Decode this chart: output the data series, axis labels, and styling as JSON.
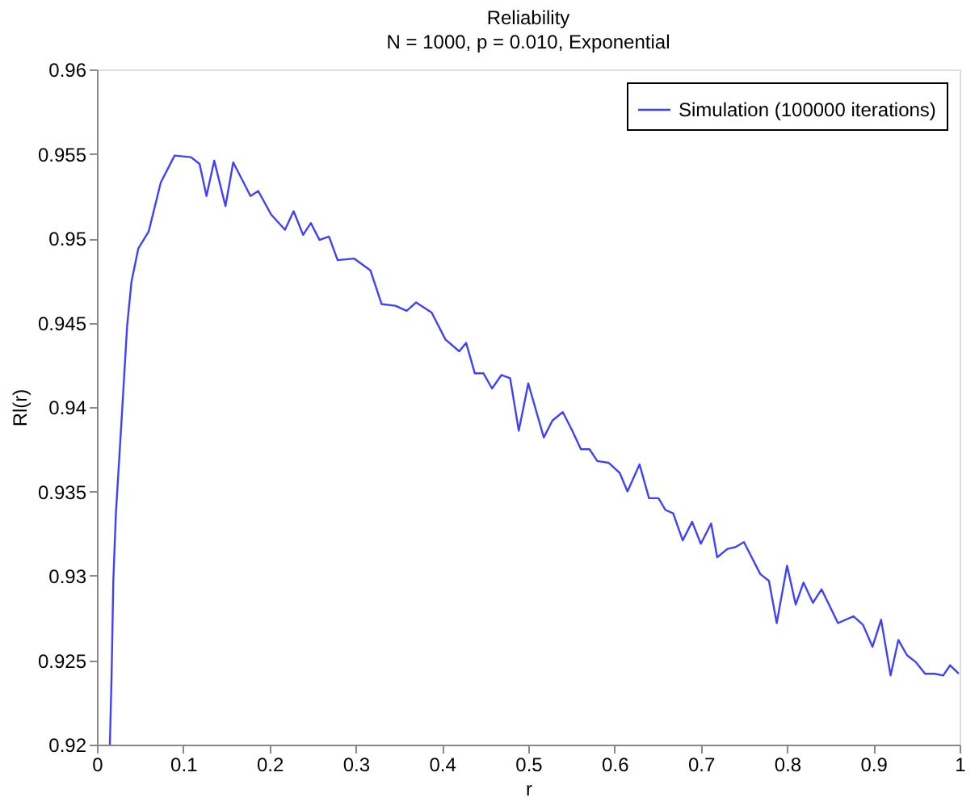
{
  "chart_data": {
    "type": "line",
    "title": "Reliability",
    "subtitle": "N = 1000, p = 0.010, Exponential",
    "xlabel": "r",
    "ylabel": "Rl(r)",
    "x": [
      0.015,
      0.017,
      0.019,
      0.022,
      0.029,
      0.035,
      0.04,
      0.048,
      0.06,
      0.074,
      0.09,
      0.109,
      0.119,
      0.127,
      0.136,
      0.149,
      0.158,
      0.178,
      0.187,
      0.202,
      0.218,
      0.228,
      0.239,
      0.248,
      0.258,
      0.269,
      0.279,
      0.298,
      0.317,
      0.33,
      0.346,
      0.359,
      0.37,
      0.388,
      0.404,
      0.42,
      0.428,
      0.438,
      0.448,
      0.458,
      0.469,
      0.479,
      0.489,
      0.5,
      0.518,
      0.528,
      0.54,
      0.551,
      0.561,
      0.571,
      0.58,
      0.593,
      0.606,
      0.615,
      0.629,
      0.64,
      0.651,
      0.659,
      0.668,
      0.679,
      0.69,
      0.7,
      0.712,
      0.719,
      0.731,
      0.74,
      0.75,
      0.769,
      0.779,
      0.788,
      0.8,
      0.81,
      0.819,
      0.83,
      0.84,
      0.859,
      0.877,
      0.888,
      0.899,
      0.909,
      0.92,
      0.929,
      0.939,
      0.949,
      0.96,
      0.971,
      0.981,
      0.989,
      0.999
    ],
    "series": [
      {
        "name": "Simulation (100000 iterations)",
        "color": "#4040ff",
        "values": [
          0.92,
          0.9241,
          0.9297,
          0.9337,
          0.9396,
          0.9448,
          0.9474,
          0.9494,
          0.9504,
          0.9533,
          0.9549,
          0.9548,
          0.9544,
          0.9525,
          0.9546,
          0.9519,
          0.9545,
          0.9525,
          0.9528,
          0.9514,
          0.9505,
          0.9516,
          0.9502,
          0.9509,
          0.9499,
          0.9501,
          0.9487,
          0.9488,
          0.9481,
          0.9461,
          0.946,
          0.9457,
          0.9462,
          0.9456,
          0.944,
          0.9433,
          0.9438,
          0.942,
          0.942,
          0.9411,
          0.9419,
          0.9417,
          0.9386,
          0.9414,
          0.9382,
          0.9392,
          0.9397,
          0.9386,
          0.9375,
          0.9375,
          0.9368,
          0.9367,
          0.9361,
          0.935,
          0.9366,
          0.9346,
          0.9346,
          0.9339,
          0.9337,
          0.9321,
          0.9332,
          0.9319,
          0.9331,
          0.9311,
          0.9316,
          0.9317,
          0.932,
          0.9301,
          0.9297,
          0.9272,
          0.9306,
          0.9283,
          0.9296,
          0.9284,
          0.9292,
          0.9272,
          0.9276,
          0.9271,
          0.9258,
          0.9274,
          0.9241,
          0.9262,
          0.9253,
          0.9249,
          0.9242,
          0.9242,
          0.9241,
          0.9247,
          0.9242
        ]
      }
    ],
    "xlim": [
      0,
      1
    ],
    "xticks": [
      0,
      0.1,
      0.2,
      0.3,
      0.4,
      0.5,
      0.6,
      0.7,
      0.8,
      0.9,
      1
    ],
    "ylim": [
      0.92,
      0.96
    ],
    "yticks": [
      0.92,
      0.925,
      0.93,
      0.935,
      0.94,
      0.945,
      0.95,
      0.955,
      0.96
    ],
    "grid": false,
    "legend": "top right",
    "marker": "none",
    "line_style": "solid"
  }
}
